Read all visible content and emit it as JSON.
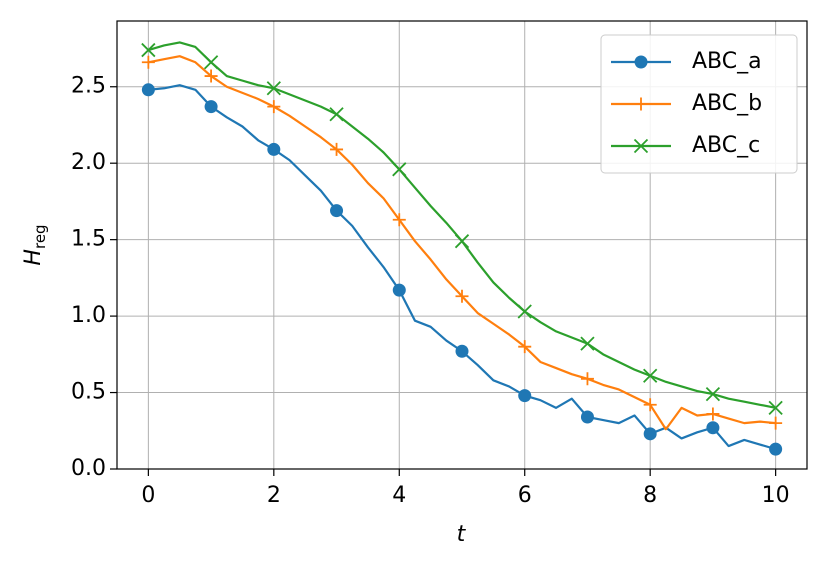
{
  "chart_data": {
    "type": "line",
    "xlabel": "t",
    "ylabel": "H",
    "ylabel_sub": "reg",
    "x": [
      0,
      0.25,
      0.5,
      0.75,
      1,
      1.25,
      1.5,
      1.75,
      2,
      2.25,
      2.5,
      2.75,
      3,
      3.25,
      3.5,
      3.75,
      4,
      4.25,
      4.5,
      4.75,
      5,
      5.25,
      5.5,
      5.75,
      6,
      6.25,
      6.5,
      6.75,
      7,
      7.25,
      7.5,
      7.75,
      8,
      8.25,
      8.5,
      8.75,
      9,
      9.25,
      9.5,
      9.75,
      10
    ],
    "series": [
      {
        "name": "ABC_a",
        "color": "#1f77b4",
        "marker": "circle",
        "values": [
          2.48,
          2.49,
          2.51,
          2.48,
          2.37,
          2.3,
          2.24,
          2.15,
          2.09,
          2.02,
          1.92,
          1.82,
          1.69,
          1.59,
          1.45,
          1.32,
          1.17,
          0.97,
          0.93,
          0.84,
          0.77,
          0.68,
          0.58,
          0.54,
          0.48,
          0.45,
          0.4,
          0.46,
          0.34,
          0.32,
          0.3,
          0.35,
          0.23,
          0.27,
          0.2,
          0.24,
          0.27,
          0.15,
          0.19,
          0.16,
          0.13
        ]
      },
      {
        "name": "ABC_b",
        "color": "#ff7f0e",
        "marker": "plus",
        "values": [
          2.66,
          2.68,
          2.7,
          2.66,
          2.57,
          2.5,
          2.46,
          2.42,
          2.37,
          2.31,
          2.24,
          2.17,
          2.09,
          1.99,
          1.87,
          1.77,
          1.63,
          1.49,
          1.37,
          1.24,
          1.13,
          1.02,
          0.95,
          0.88,
          0.8,
          0.7,
          0.66,
          0.62,
          0.59,
          0.55,
          0.52,
          0.47,
          0.42,
          0.26,
          0.4,
          0.35,
          0.36,
          0.33,
          0.3,
          0.31,
          0.3
        ]
      },
      {
        "name": "ABC_c",
        "color": "#2ca02c",
        "marker": "x",
        "values": [
          2.74,
          2.77,
          2.79,
          2.76,
          2.66,
          2.57,
          2.54,
          2.51,
          2.49,
          2.45,
          2.41,
          2.37,
          2.32,
          2.24,
          2.16,
          2.07,
          1.96,
          1.84,
          1.72,
          1.61,
          1.49,
          1.35,
          1.22,
          1.12,
          1.03,
          0.96,
          0.9,
          0.86,
          0.82,
          0.75,
          0.7,
          0.65,
          0.61,
          0.57,
          0.54,
          0.51,
          0.49,
          0.46,
          0.44,
          0.42,
          0.4
        ]
      }
    ],
    "markevery": 4,
    "xlim": [
      -0.5,
      10.5
    ],
    "ylim": [
      0,
      2.93
    ],
    "xticks": [
      0,
      2,
      4,
      6,
      8,
      10
    ],
    "yticks": [
      {
        "value": 0,
        "label": "0.0"
      },
      {
        "value": 0.5,
        "label": "0.5"
      },
      {
        "value": 1,
        "label": "1.0"
      },
      {
        "value": 1.5,
        "label": "1.5"
      },
      {
        "value": 2,
        "label": "2.0"
      },
      {
        "value": 2.5,
        "label": "2.5"
      }
    ],
    "grid": true,
    "legend": "upper-right"
  }
}
